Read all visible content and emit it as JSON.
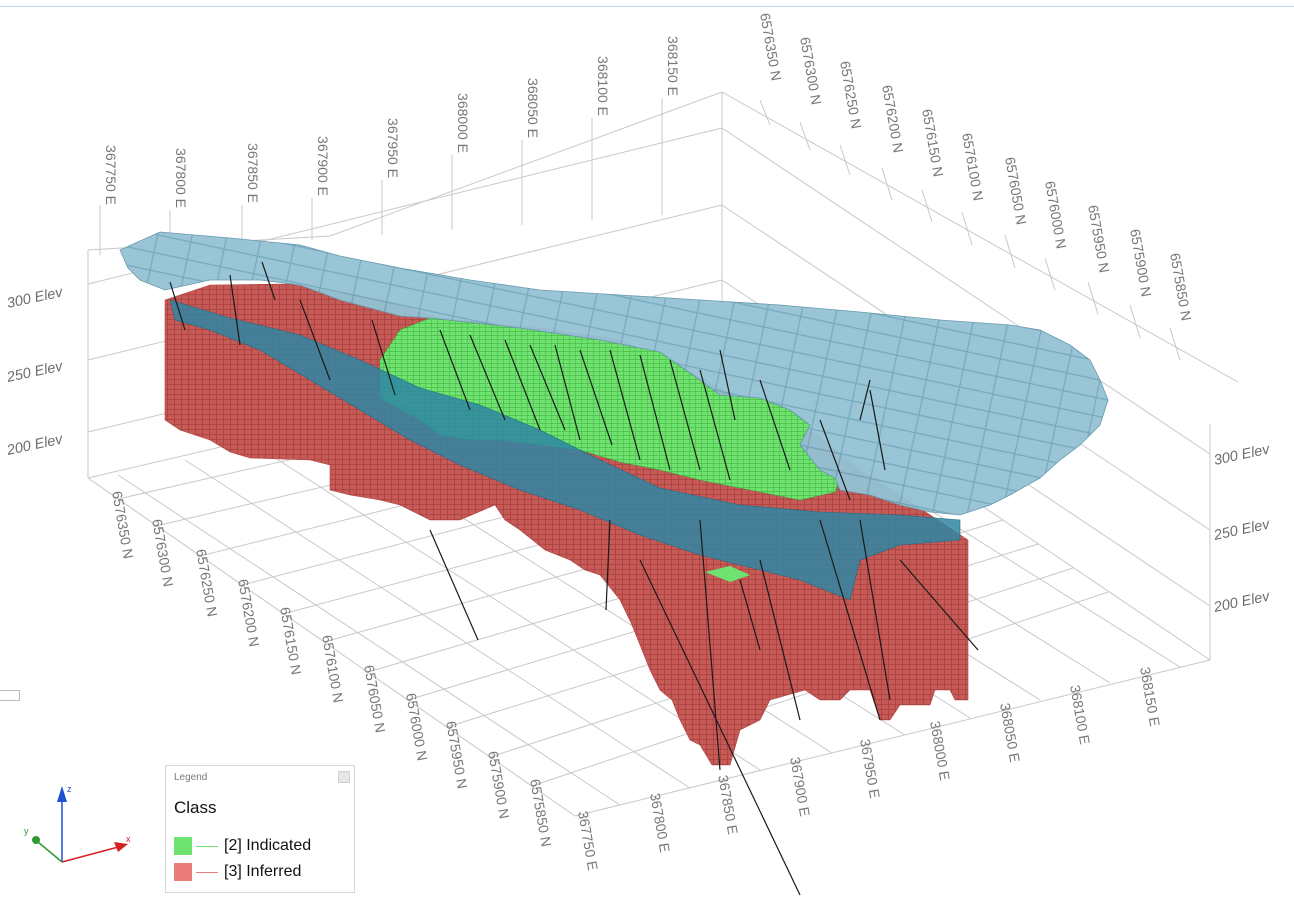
{
  "viewport": {
    "east_ticks_top": [
      "367750 E",
      "367800 E",
      "367850 E",
      "367900 E",
      "367950 E",
      "368000 E",
      "368050 E",
      "368100 E",
      "368150 E"
    ],
    "north_ticks_top": [
      "6576350 N",
      "6576300 N",
      "6576250 N",
      "6576200 N",
      "6576150 N",
      "6576100 N",
      "6576050 N",
      "6576000 N",
      "6575950 N",
      "6575900 N",
      "6575850 N"
    ],
    "north_ticks_bottom": [
      "6576350 N",
      "6576300 N",
      "6576250 N",
      "6576200 N",
      "6576150 N",
      "6576100 N",
      "6576050 N",
      "6576000 N",
      "6575950 N",
      "6575900 N",
      "6575850 N"
    ],
    "east_ticks_bottom": [
      "367750 E",
      "367800 E",
      "367850 E",
      "367900 E",
      "367950 E",
      "368000 E",
      "368050 E",
      "368100 E",
      "368150 E"
    ],
    "elev_left": [
      "300 Elev",
      "250 Elev",
      "200 Elev"
    ],
    "elev_right": [
      "300 Elev",
      "250 Elev",
      "200 Elev"
    ]
  },
  "legend": {
    "panel_title": "Legend",
    "heading": "Class",
    "items": [
      {
        "label": "[2] Indicated",
        "color": "#6fe36f"
      },
      {
        "label": "[3] Inferred",
        "color": "#e97b78"
      }
    ]
  },
  "axis_triad": {
    "x": "x",
    "y": "y",
    "z": "z",
    "x_color": "#d61f1f",
    "y_color": "#2f9a2f",
    "z_color": "#1e4fd6"
  },
  "colors": {
    "top_surface": "#8fbfd2",
    "seam": "#3a8aa6",
    "indicated": "#6fe36f",
    "inferred": "#c65a57",
    "grid": "#c8c8c8"
  }
}
